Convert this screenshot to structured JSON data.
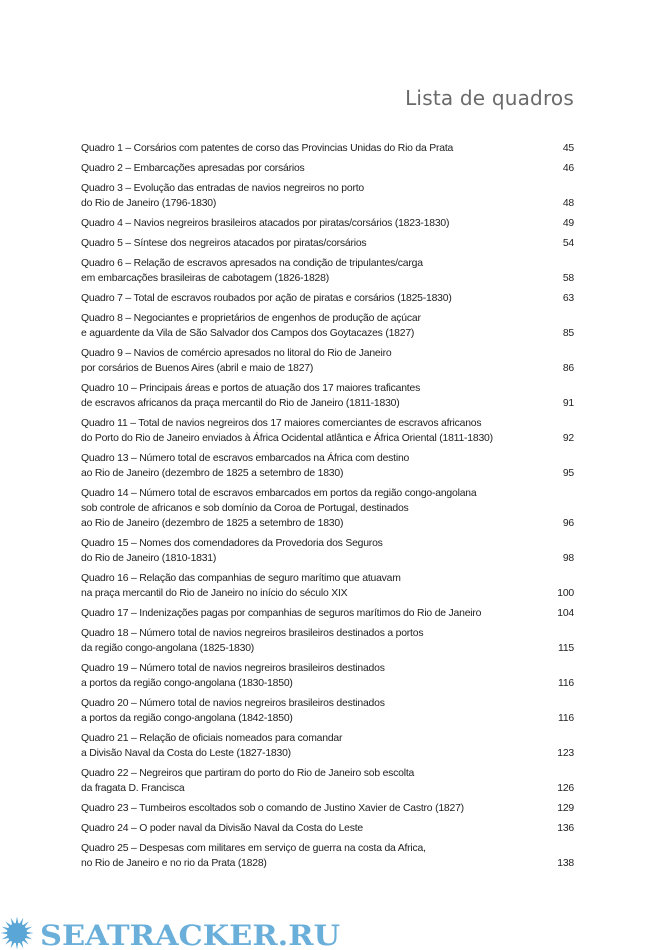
{
  "title": "Lista de quadros",
  "entries": [
    {
      "lines": [
        "Quadro 1 – Corsários com patentes de corso das Provincias Unidas do Rio da Prata"
      ],
      "page": "45"
    },
    {
      "lines": [
        "Quadro 2 – Embarcações apresadas por corsários"
      ],
      "page": "46"
    },
    {
      "lines": [
        "Quadro 3 – Evolução das entradas de navios negreiros no porto",
        "do Rio de Janeiro (1796-1830)"
      ],
      "page": "48"
    },
    {
      "lines": [
        "Quadro 4 – Navios negreiros brasileiros atacados por piratas/corsários (1823-1830)"
      ],
      "page": "49"
    },
    {
      "lines": [
        "Quadro 5 – Síntese dos negreiros atacados por piratas/corsários"
      ],
      "page": "54"
    },
    {
      "lines": [
        "Quadro 6 – Relação de escravos apresados na condição de tripulantes/carga",
        "em embarcações brasileiras de cabotagem (1826-1828)"
      ],
      "page": "58"
    },
    {
      "lines": [
        "Quadro 7 – Total de escravos roubados por ação de piratas e corsários (1825-1830)"
      ],
      "page": "63"
    },
    {
      "lines": [
        "Quadro 8 – Negociantes e proprietários de engenhos de produção de açúcar",
        "e aguardente da Vila de São Salvador dos Campos dos Goytacazes (1827)"
      ],
      "page": "85"
    },
    {
      "lines": [
        "Quadro 9 – Navios de comércio apresados no litoral do Rio de Janeiro",
        "por corsários de Buenos Aires (abril e maio de 1827)"
      ],
      "page": "86"
    },
    {
      "lines": [
        "Quadro 10 – Principais áreas e portos de atuação dos 17 maiores traficantes",
        "de escravos africanos da praça mercantil do Rio de Janeiro (1811-1830)"
      ],
      "page": "91"
    },
    {
      "lines": [
        "Quadro 11 – Total de navios negreiros dos 17 maiores comerciantes de escravos africanos",
        "do Porto do Rio de Janeiro enviados à África Ocidental atlântica e África Oriental (1811-1830)"
      ],
      "page": "92"
    },
    {
      "lines": [
        "Quadro 13 – Número total de escravos embarcados na África com destino",
        "ao Rio de Janeiro (dezembro de 1825 a setembro de 1830)"
      ],
      "page": "95"
    },
    {
      "lines": [
        "Quadro 14 –  Número total de escravos embarcados em portos da região congo-angolana",
        "sob controle de africanos e sob domínio da Coroa de Portugal, destinados",
        "ao Rio de Janeiro (dezembro de 1825 a setembro de 1830)"
      ],
      "page": "96"
    },
    {
      "lines": [
        "Quadro 15 – Nomes dos comendadores da Provedoria dos Seguros",
        "do Rio de Janeiro (1810-1831)"
      ],
      "page": "98"
    },
    {
      "lines": [
        "Quadro 16 –  Relação das companhias de seguro marítimo que atuavam",
        "na praça mercantil do Rio de Janeiro no início do século XIX"
      ],
      "page": "100"
    },
    {
      "lines": [
        "Quadro 17 –  Indenizações pagas por companhias de seguros marítimos do Rio de Janeiro"
      ],
      "page": "104"
    },
    {
      "lines": [
        "Quadro 18 –  Número total de navios negreiros brasileiros destinados a portos",
        "da região congo-angolana (1825-1830)"
      ],
      "page": "115"
    },
    {
      "lines": [
        "Quadro 19 –  Número total de navios negreiros brasileiros destinados",
        "a portos da região congo-angolana (1830-1850)"
      ],
      "page": "116"
    },
    {
      "lines": [
        "Quadro 20 –  Número total de navios negreiros brasileiros destinados",
        "a portos da região congo-angolana (1842-1850)"
      ],
      "page": "116"
    },
    {
      "lines": [
        "Quadro 21 – Relação de oficiais nomeados para comandar",
        "a Divisão Naval da Costa do Leste (1827-1830)"
      ],
      "page": "123"
    },
    {
      "lines": [
        "Quadro 22 – Negreiros que partiram do porto do Rio de Janeiro sob escolta",
        "da fragata D. Francisca"
      ],
      "page": "126"
    },
    {
      "lines": [
        "Quadro 23 – Tumbeiros escoltados sob o comando de Justino Xavier de Castro (1827)"
      ],
      "page": "129"
    },
    {
      "lines": [
        "Quadro 24 – O poder naval da Divisão Naval da Costa do Leste"
      ],
      "page": "136"
    },
    {
      "lines": [
        "Quadro 25 – Despesas com militares em serviço de guerra na costa da Africa,",
        "no Rio de Janeiro e no rio da Prata (1828)"
      ],
      "page": "138"
    }
  ],
  "watermark": {
    "text": "SEATRACKER.RU",
    "color": "#5aa6d6"
  }
}
